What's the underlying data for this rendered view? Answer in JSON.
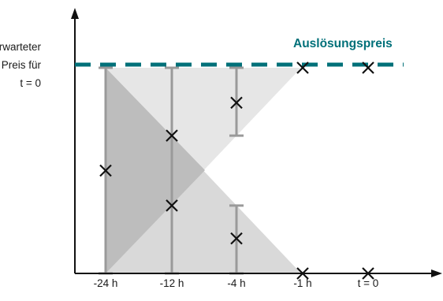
{
  "y_axis_label": [
    "Erwarteter",
    "Preis für",
    "t = 0"
  ],
  "trigger_label": "Auslösungspreis",
  "x_ticks": [
    "-24 h",
    "-12 h",
    "-4 h",
    "-1 h",
    "t = 0"
  ],
  "colors": {
    "trigger_line": "#007079",
    "axis": "#111111",
    "error_bar": "#9a9a9a",
    "marker": "#111111",
    "upper_cone": "#e6e6e6",
    "lower_cone": "#d9d9d9",
    "overlap": "#bdbdbd"
  },
  "diagram": {
    "x_categories": [
      "-24 h",
      "-12 h",
      "-4 h",
      "-1 h",
      "t = 0"
    ],
    "trigger_level": 1.0,
    "y_range": [
      0,
      1
    ],
    "intervals": [
      {
        "x": "-24 h",
        "low": 0.0,
        "high": 1.0
      },
      {
        "x": "-12 h",
        "low": 0.0,
        "high": 1.0
      },
      {
        "x": "-4 h",
        "low": 0.67,
        "high": 1.0
      },
      {
        "x": "-4 h",
        "low": 0.0,
        "high": 0.33
      }
    ],
    "markers": [
      {
        "x": "-24 h",
        "y": 0.5
      },
      {
        "x": "-12 h",
        "y": 0.67
      },
      {
        "x": "-12 h",
        "y": 0.33
      },
      {
        "x": "-4 h",
        "y": 0.83
      },
      {
        "x": "-4 h",
        "y": 0.17
      },
      {
        "x": "-1 h",
        "y": 1.0
      },
      {
        "x": "t = 0",
        "y": 1.0
      },
      {
        "x": "-1 h",
        "y": 0.0
      },
      {
        "x": "t = 0",
        "y": 0.0
      }
    ]
  }
}
